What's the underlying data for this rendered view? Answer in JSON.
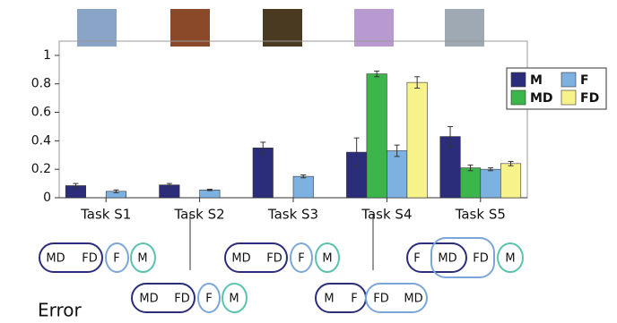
{
  "chart_data": {
    "type": "bar",
    "categories": [
      "Task S1",
      "Task S2",
      "Task S3",
      "Task S4",
      "Task S5"
    ],
    "series": [
      {
        "name": "M",
        "color": "#2b2d7a",
        "values": [
          0.085,
          0.09,
          0.35,
          0.32,
          0.43
        ],
        "errors": [
          0.015,
          0.01,
          0.04,
          0.1,
          0.07
        ]
      },
      {
        "name": "MD",
        "color": "#3cb54a",
        "values": [
          null,
          null,
          null,
          0.87,
          0.21
        ],
        "errors": [
          null,
          null,
          null,
          0.02,
          0.02
        ]
      },
      {
        "name": "F",
        "color": "#7cb1e0",
        "values": [
          0.045,
          0.055,
          0.15,
          0.33,
          0.2
        ],
        "errors": [
          0.01,
          0.005,
          0.01,
          0.04,
          0.01
        ]
      },
      {
        "name": "FD",
        "color": "#f7f38a",
        "values": [
          null,
          null,
          null,
          0.81,
          0.24
        ],
        "errors": [
          null,
          null,
          null,
          0.04,
          0.015
        ]
      }
    ],
    "ylim": [
      0,
      1.1
    ],
    "yticks": [
      0,
      0.2,
      0.4,
      0.6,
      0.8,
      1
    ],
    "legend": "right"
  },
  "diagrams": [
    {
      "labels": [
        "MD",
        "FD",
        "F",
        "M"
      ]
    },
    {
      "labels": [
        "MD",
        "FD",
        "F",
        "M"
      ]
    },
    {
      "labels": [
        "MD",
        "FD",
        "F",
        "M"
      ]
    },
    {
      "labels": [
        "M",
        "F",
        "FD",
        "MD"
      ]
    },
    {
      "labels": [
        "F",
        "MD",
        "FD",
        "M"
      ]
    }
  ],
  "caption": "Error"
}
